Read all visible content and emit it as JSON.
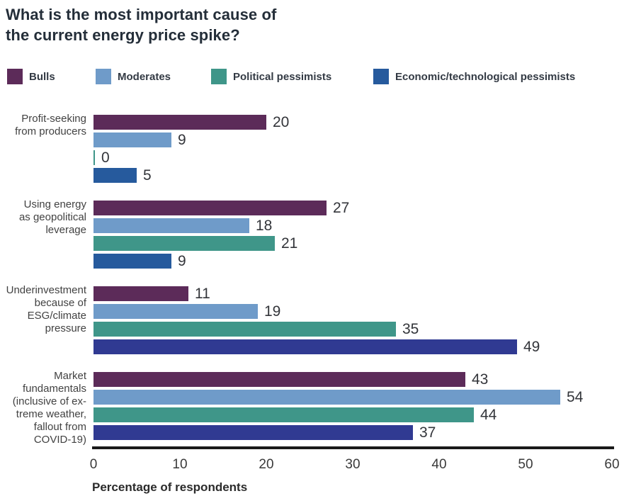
{
  "title": {
    "line1": "What is the most important cause of",
    "line2": "the current energy price spike?"
  },
  "chart_data": {
    "type": "bar",
    "orientation": "horizontal",
    "title": "What is the most important cause of the current energy price spike?",
    "xlabel": "Percentage of respondents",
    "ylabel": "",
    "xlim": [
      0,
      60
    ],
    "xticks": [
      0,
      10,
      20,
      30,
      40,
      50,
      60
    ],
    "grid": false,
    "legend_position": "top",
    "series": [
      {
        "name": "Bulls",
        "color": "#5c2b59"
      },
      {
        "name": "Moderates",
        "color": "#6f9bc9"
      },
      {
        "name": "Political pessimists",
        "color": "#3f9689"
      },
      {
        "name": "Economic/technological pessimists",
        "color": "#265a9d"
      }
    ],
    "categories": [
      "Profit-seeking from producers",
      "Using energy as geopolitical leverage",
      "Underinvestment because of ESG/climate pressure",
      "Market fundamentals (inclusive of extreme weather, fallout from COVID-19)"
    ],
    "groups": [
      {
        "category": "Profit-seeking from producers",
        "label_lines": [
          "Profit-seeking",
          "from producers"
        ],
        "values": [
          20,
          9,
          0,
          5
        ],
        "bar_colors": [
          "#5c2b59",
          "#6f9bc9",
          "#3f9689",
          "#265a9d"
        ]
      },
      {
        "category": "Using energy as geopolitical leverage",
        "label_lines": [
          "Using energy",
          "as geopolitical",
          "leverage"
        ],
        "values": [
          27,
          18,
          21,
          9
        ],
        "bar_colors": [
          "#5c2b59",
          "#6f9bc9",
          "#3f9689",
          "#265a9d"
        ]
      },
      {
        "category": "Underinvestment because of ESG/climate pressure",
        "label_lines": [
          "Underinvestment",
          "because of",
          "ESG/climate",
          "pressure"
        ],
        "values": [
          11,
          19,
          35,
          49
        ],
        "bar_colors": [
          "#5c2b59",
          "#6f9bc9",
          "#3f9689",
          "#303a92"
        ]
      },
      {
        "category": "Market fundamentals (inclusive of extreme weather, fallout from COVID-19)",
        "label_lines": [
          "Market",
          "fundamentals",
          "(inclusive of ex-",
          "treme weather,",
          "fallout from",
          "COVID-19)"
        ],
        "values": [
          43,
          54,
          44,
          37
        ],
        "bar_colors": [
          "#5c2b59",
          "#6f9bc9",
          "#3f9689",
          "#303a92"
        ]
      }
    ]
  }
}
